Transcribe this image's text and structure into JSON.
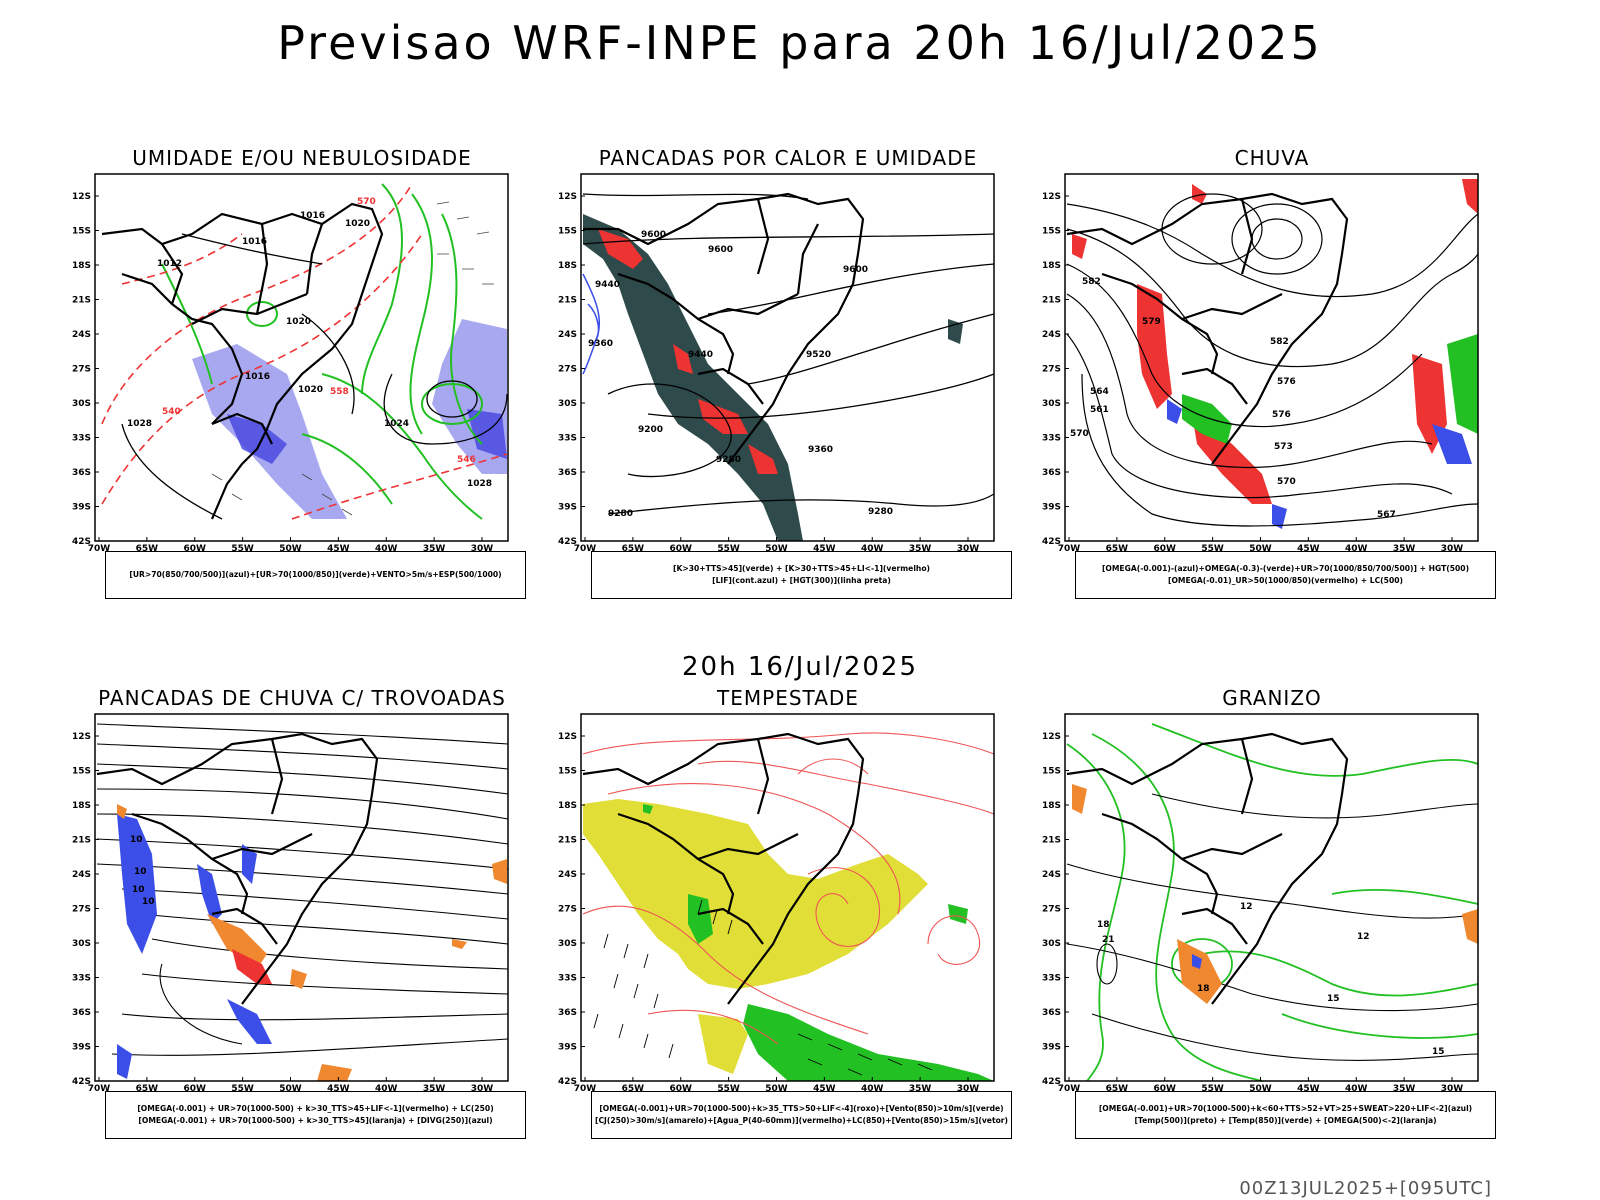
{
  "header": {
    "title": "Previsao WRF-INPE  para 20h 16/Jul/2025"
  },
  "middle": {
    "time_label": "20h 16/Jul/2025"
  },
  "footer": {
    "run_label": "00Z13JUL2025+[095UTC]"
  },
  "axes": {
    "lat_labels": [
      "12S",
      "15S",
      "18S",
      "21S",
      "24S",
      "27S",
      "30S",
      "33S",
      "36S",
      "39S",
      "42S"
    ],
    "lon_labels": [
      "70W",
      "65W",
      "60W",
      "55W",
      "50W",
      "45W",
      "40W",
      "35W",
      "30W"
    ]
  },
  "panels": [
    {
      "title": "UMIDADE E/OU NEBULOSIDADE",
      "legend": [
        "[UR>70(850/700/500)](azul)+[UR>70(1000/850)](verde)+VENTO>5m/s+ESP(500/1000)"
      ],
      "contour_labels": [
        "1016",
        "1020",
        "1012",
        "1016",
        "1020",
        "1016",
        "1020",
        "1024",
        "1028",
        "1028",
        "570",
        "558",
        "546",
        "540"
      ]
    },
    {
      "title": "PANCADAS POR CALOR E UMIDADE",
      "legend": [
        "[K>30+TTS>45](verde) + [K>30+TTS>45+LI<-1](vermelho)",
        "[LIF](cont.azul) + [HGT(300)](linha preta)"
      ],
      "contour_labels": [
        "9600",
        "9600",
        "9600",
        "9440",
        "9520",
        "9440",
        "9360",
        "9200",
        "9280",
        "9360",
        "9280",
        "9280"
      ]
    },
    {
      "title": "CHUVA",
      "legend": [
        "[OMEGA(-0.001)-(azul)+OMEGA(-0.3)-(verde)+UR>70(1000/850/700/500)] + HGT(500)",
        "[OMEGA(-0.01)_UR>50(1000/850)(vermelho) + LC(500)"
      ],
      "contour_labels": [
        "582",
        "579",
        "576",
        "573",
        "570",
        "567",
        "564",
        "561",
        "570",
        "576",
        "582"
      ]
    },
    {
      "title": "PANCADAS DE CHUVA C/ TROVOADAS",
      "legend": [
        "[OMEGA(-0.001) + UR>70(1000-500) + k>30_TTS>45+LIF<-1](vermelho) + LC(250)",
        "[OMEGA(-0.001) + UR>70(1000-500) + k>30_TTS>45](laranja) + [DIVG(250)](azul)"
      ],
      "contour_labels": [
        "10",
        "10",
        "10",
        "10"
      ]
    },
    {
      "title": "TEMPESTADE",
      "legend": [
        "[OMEGA(-0.001)+UR>70(1000-500)+k>35_TTS>50+LIF<-4](roxo)+[Vento(850)>10m/s](verde)",
        "[CJ(250)>30m/s](amarelo)+[Agua_P(40-60mm)](vermelho)+LC(850)+[Vento(850)>15m/s](vetor)"
      ],
      "contour_labels": []
    },
    {
      "title": "GRANIZO",
      "legend": [
        "[OMEGA(-0.001)+UR>70(1000-500)+k<60+TTS>52+VT>25+SWEAT>220+LIF<-2](azul)",
        "[Temp(500)](preto) + [Temp(850)](verde) + [OMEGA(500)<-2](laranja)"
      ],
      "contour_labels": [
        "18",
        "21",
        "12",
        "12",
        "15",
        "18",
        "15"
      ]
    }
  ],
  "colors": {
    "blue": "#3b4ee8",
    "green": "#22c022",
    "red": "#ee3333",
    "orange": "#f08830",
    "yellow": "#e2de38",
    "darkteal": "#2e4a4a",
    "lightblue": "#9f9ff0"
  }
}
